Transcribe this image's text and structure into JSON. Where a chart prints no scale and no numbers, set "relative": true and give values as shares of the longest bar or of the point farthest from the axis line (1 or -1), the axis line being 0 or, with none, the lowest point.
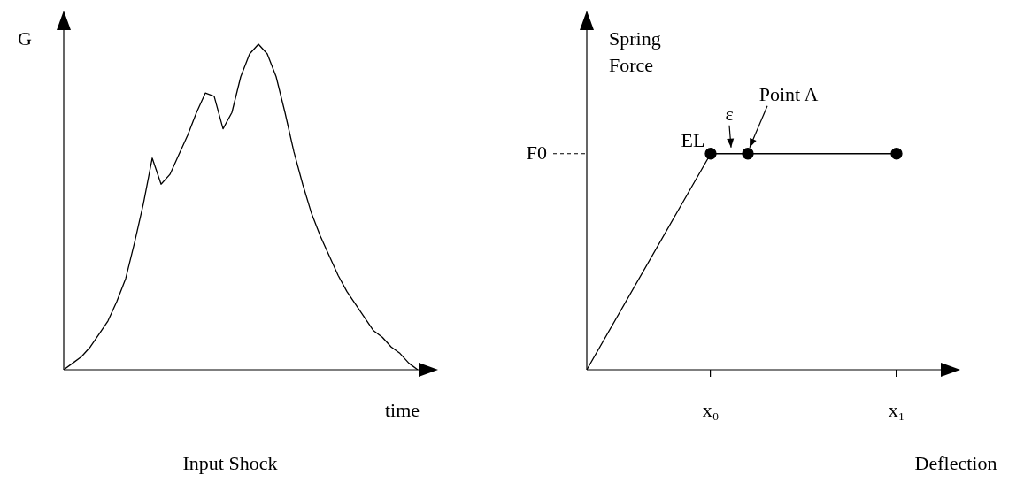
{
  "chart_data": [
    {
      "type": "line",
      "relative": true,
      "ylabel": "G",
      "xlabel": "time",
      "annotations": [
        "Input Shock"
      ],
      "categories": [
        null,
        null,
        null,
        null,
        null,
        null,
        null,
        null,
        null,
        null,
        null,
        null,
        null,
        null,
        null,
        null,
        null,
        null,
        null,
        null,
        null,
        null,
        null,
        null,
        null,
        null,
        null,
        null,
        null,
        null,
        null,
        null,
        null,
        null,
        null,
        null,
        null,
        null,
        null,
        null,
        null
      ],
      "series": [
        {
          "color": "#000000",
          "values": [
            0,
            0.02,
            0.04,
            0.07,
            0.11,
            0.15,
            0.21,
            0.28,
            0.39,
            0.51,
            0.65,
            0.57,
            0.6,
            0.66,
            0.72,
            0.79,
            0.85,
            0.84,
            0.74,
            0.79,
            0.9,
            0.97,
            1,
            0.97,
            0.9,
            0.79,
            0.67,
            0.57,
            0.48,
            0.41,
            0.35,
            0.29,
            0.24,
            0.2,
            0.16,
            0.12,
            0.1,
            0.07,
            0.05,
            0.02,
            0
          ]
        }
      ]
    },
    {
      "type": "line",
      "relative": true,
      "ylabel": "Spring Force",
      "xlabel": "Deflection",
      "tick_labels": "x",
      "categories": [
        null,
        null,
        null,
        null,
        null,
        null,
        null,
        null,
        null,
        null,
        null,
        null,
        null,
        null,
        null,
        null,
        null,
        null,
        null,
        null,
        "x₀",
        null,
        null,
        null,
        null,
        null,
        null,
        null,
        null,
        null,
        null,
        null,
        null,
        null,
        null,
        null,
        null,
        null,
        null,
        null,
        null,
        null,
        null,
        null,
        null,
        null,
        null,
        null,
        null,
        null,
        "x₁",
        null,
        null,
        null,
        null,
        null,
        null,
        null,
        null,
        null,
        null
      ],
      "series": [
        {
          "type": "line",
          "color": "#000000",
          "marker": "none",
          "values": [
            0,
            null,
            null,
            null,
            null,
            null,
            null,
            null,
            null,
            null,
            null,
            null,
            null,
            null,
            null,
            null,
            null,
            null,
            null,
            null,
            1,
            null,
            null,
            null,
            null,
            null,
            null,
            null,
            null,
            null,
            null,
            null,
            null,
            null,
            null,
            null,
            null,
            null,
            null,
            null,
            null,
            null,
            null,
            null,
            null,
            null,
            null,
            null,
            null,
            null,
            1,
            null,
            null,
            null,
            null,
            null,
            null,
            null,
            null,
            null,
            null
          ]
        },
        {
          "type": "scatter",
          "color": "#000000",
          "marker": "circle",
          "values": [
            null,
            null,
            null,
            null,
            null,
            null,
            null,
            null,
            null,
            null,
            null,
            null,
            null,
            null,
            null,
            null,
            null,
            null,
            null,
            null,
            1,
            null,
            null,
            null,
            null,
            null,
            1,
            null,
            null,
            null,
            null,
            null,
            null,
            null,
            null,
            null,
            null,
            null,
            null,
            null,
            null,
            null,
            null,
            null,
            null,
            null,
            null,
            null,
            null,
            null,
            1,
            null,
            null,
            null,
            null,
            null,
            null,
            null,
            null,
            null,
            null
          ]
        }
      ],
      "annotations": [
        "F0",
        "EL",
        "ε",
        "Point A"
      ]
    }
  ]
}
